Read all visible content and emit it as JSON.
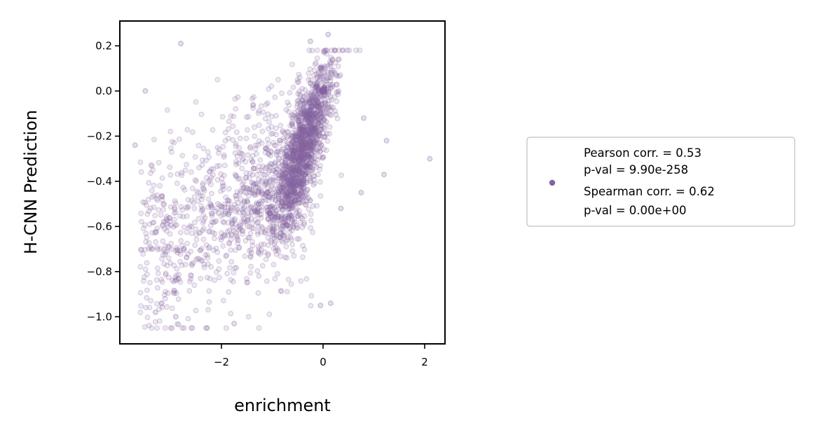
{
  "chart_data": {
    "type": "scatter",
    "title": "",
    "xlabel": "enrichment",
    "ylabel": "H-CNN Prediction",
    "xlim": [
      -4.0,
      2.4
    ],
    "ylim": [
      -1.12,
      0.31
    ],
    "xticks": [
      -2,
      0,
      2
    ],
    "xtick_labels": [
      "−2",
      "0",
      "2"
    ],
    "yticks": [
      0.2,
      0.0,
      -0.2,
      -0.4,
      -0.6,
      -0.8,
      -1.0
    ],
    "ytick_labels": [
      "0.2",
      "0.0",
      "−0.2",
      "−0.4",
      "−0.6",
      "−0.8",
      "−1.0"
    ],
    "grid": false,
    "legend_position": "right, outside plot",
    "series_color": "#8464a0",
    "series": [
      {
        "legend_lines": [
          "Pearson corr. = 0.53",
          "p-val = 9.90e-258",
          "Spearman corr. = 0.62",
          "p-val = 0.00e+00"
        ],
        "n_points_approx": 2400,
        "point_alpha": 0.15,
        "marked_points": [
          {
            "x": 0.0,
            "y": 0.0
          },
          {
            "x": 0.1,
            "y": 0.25
          },
          {
            "x": -0.25,
            "y": 0.22
          },
          {
            "x": -2.8,
            "y": 0.21
          },
          {
            "x": 2.1,
            "y": -0.3
          },
          {
            "x": 1.25,
            "y": -0.22
          },
          {
            "x": 1.2,
            "y": -0.37
          },
          {
            "x": -3.7,
            "y": -0.24
          },
          {
            "x": -3.5,
            "y": 0.0
          },
          {
            "x": -2.3,
            "y": -1.05
          },
          {
            "x": -1.75,
            "y": -1.03
          },
          {
            "x": -2.9,
            "y": -1.0
          },
          {
            "x": -3.3,
            "y": -0.98
          },
          {
            "x": 0.15,
            "y": -0.94
          },
          {
            "x": -0.05,
            "y": -0.95
          },
          {
            "x": 0.8,
            "y": -0.12
          },
          {
            "x": 0.75,
            "y": -0.45
          },
          {
            "x": 0.35,
            "y": -0.52
          }
        ]
      }
    ]
  }
}
